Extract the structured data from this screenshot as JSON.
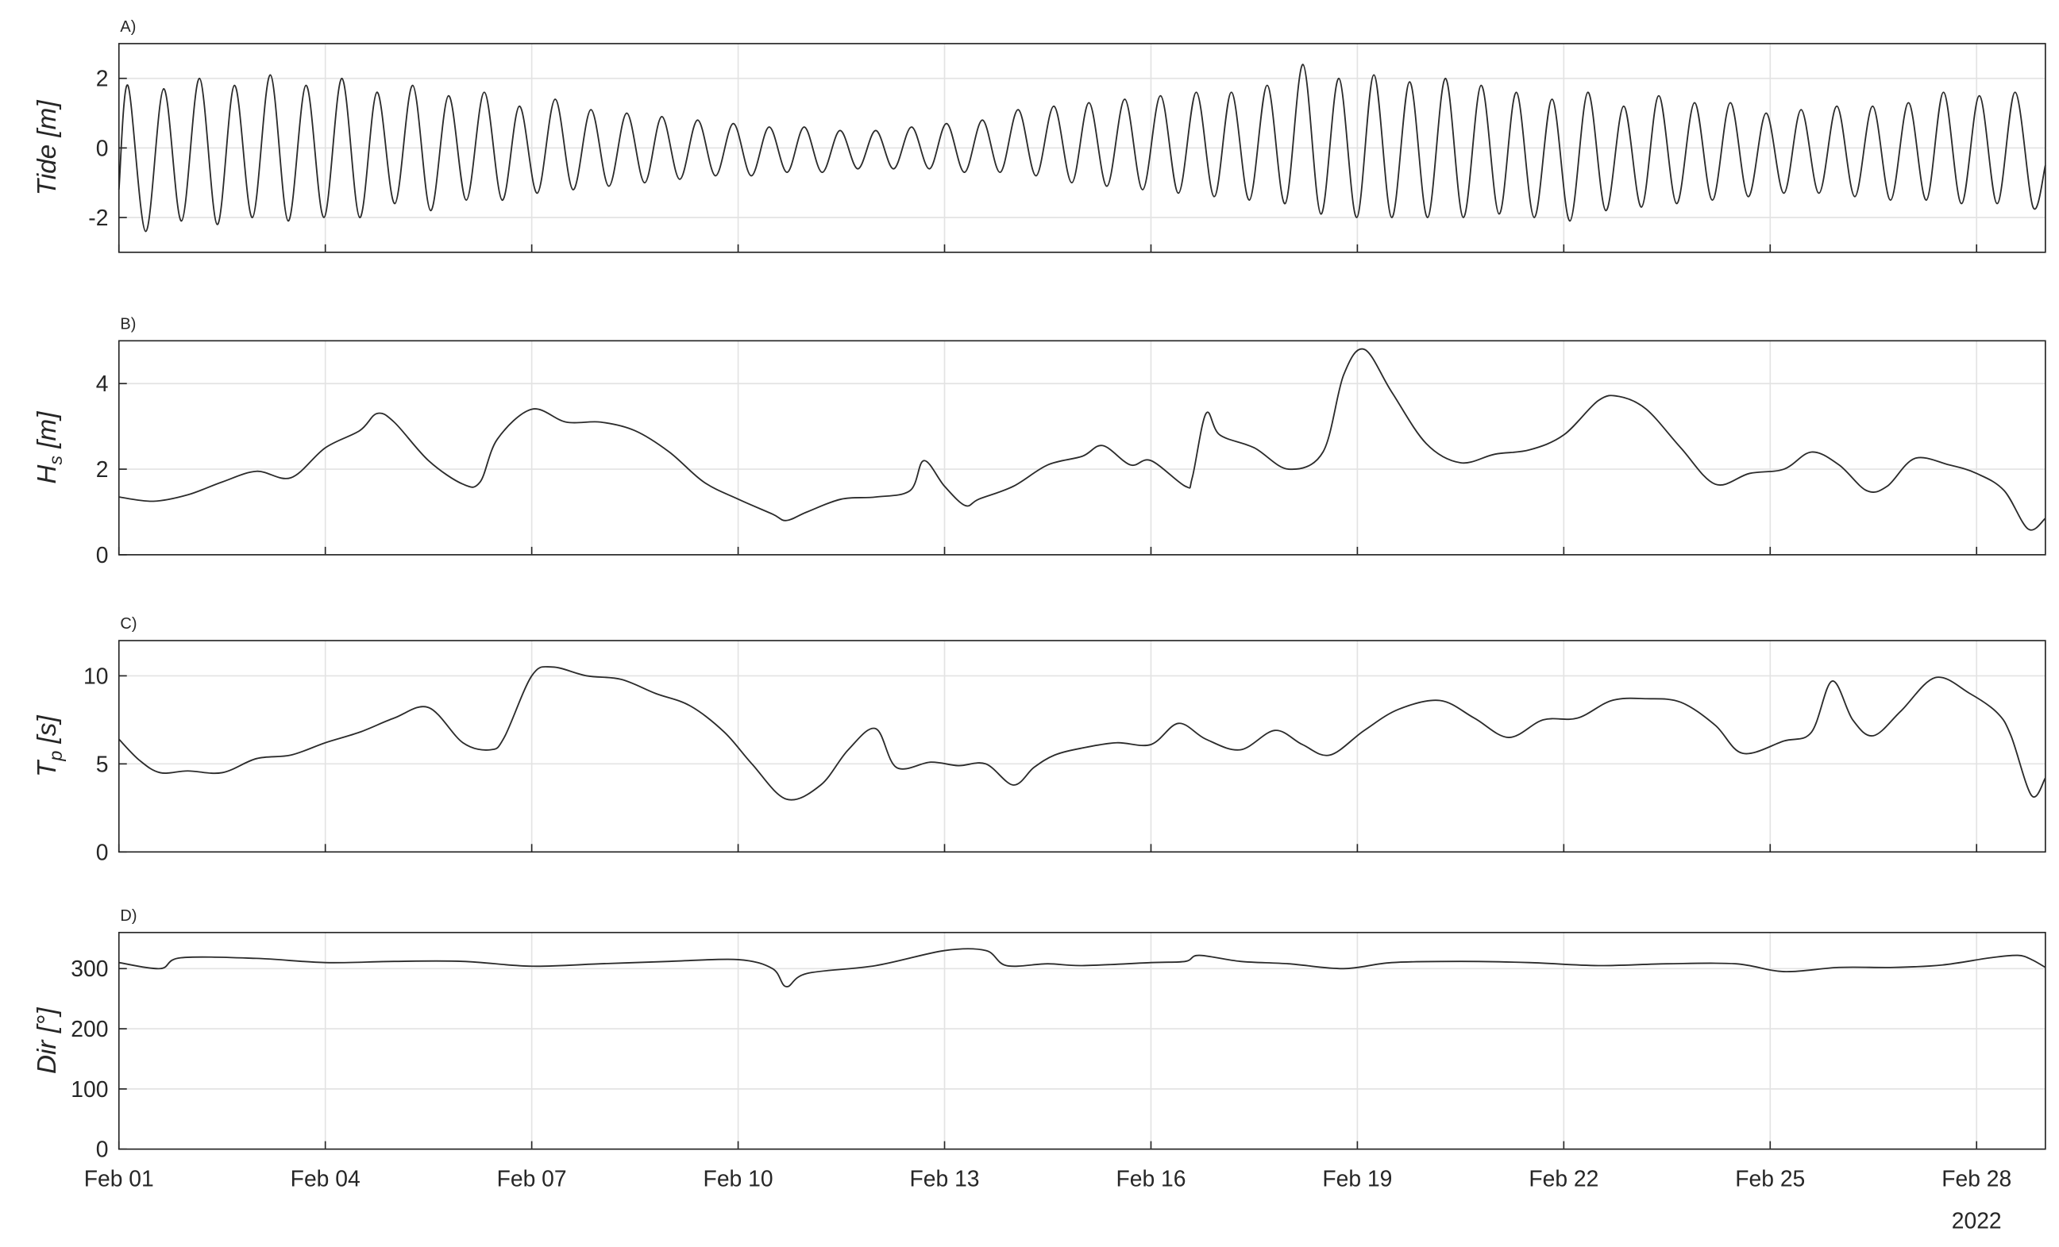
{
  "chart_data": [
    {
      "type": "line",
      "panel_label": "A)",
      "ylabel": [
        {
          "text": "Tide [m]"
        }
      ],
      "xlim": [
        0,
        28
      ],
      "xticks": [
        0,
        3,
        6,
        9,
        12,
        15,
        18,
        21,
        24,
        27
      ],
      "ylim": [
        -3,
        3
      ],
      "yticks": [
        -2,
        0,
        2
      ],
      "grid": true,
      "x": [
        0,
        0.13,
        0.39,
        0.65,
        0.91,
        1.17,
        1.43,
        1.68,
        1.94,
        2.2,
        2.46,
        2.72,
        2.98,
        3.24,
        3.5,
        3.75,
        4.01,
        4.27,
        4.53,
        4.79,
        5.05,
        5.31,
        5.57,
        5.82,
        6.08,
        6.34,
        6.6,
        6.86,
        7.12,
        7.38,
        7.64,
        7.89,
        8.15,
        8.41,
        8.67,
        8.93,
        9.19,
        9.45,
        9.71,
        9.96,
        10.22,
        10.48,
        10.74,
        11.0,
        11.26,
        11.52,
        11.78,
        12.03,
        12.29,
        12.55,
        12.81,
        13.07,
        13.33,
        13.59,
        13.85,
        14.1,
        14.36,
        14.62,
        14.88,
        15.14,
        15.4,
        15.66,
        15.92,
        16.17,
        16.43,
        16.69,
        16.95,
        17.21,
        17.47,
        17.73,
        17.99,
        18.24,
        18.5,
        18.76,
        19.02,
        19.28,
        19.54,
        19.8,
        20.06,
        20.31,
        20.57,
        20.83,
        21.09,
        21.35,
        21.61,
        21.87,
        22.13,
        22.38,
        22.64,
        22.9,
        23.16,
        23.42,
        23.68,
        23.94,
        24.2,
        24.45,
        24.71,
        24.97,
        25.23,
        25.49,
        25.75,
        26.01,
        26.27,
        26.52,
        26.78,
        27.04,
        27.3,
        27.56,
        27.82,
        28
      ],
      "series": [
        {
          "color": "#2b2b2b",
          "values": [
            -1.2,
            1.8,
            -2.4,
            1.7,
            -2.1,
            2.0,
            -2.2,
            1.8,
            -2.0,
            2.1,
            -2.1,
            1.8,
            -2.0,
            2.0,
            -2.0,
            1.6,
            -1.6,
            1.8,
            -1.8,
            1.5,
            -1.5,
            1.6,
            -1.5,
            1.2,
            -1.3,
            1.4,
            -1.2,
            1.1,
            -1.1,
            1.0,
            -1.0,
            0.9,
            -0.9,
            0.8,
            -0.8,
            0.7,
            -0.8,
            0.6,
            -0.7,
            0.6,
            -0.7,
            0.5,
            -0.6,
            0.5,
            -0.6,
            0.6,
            -0.6,
            0.7,
            -0.7,
            0.8,
            -0.7,
            1.1,
            -0.8,
            1.2,
            -1.0,
            1.3,
            -1.1,
            1.4,
            -1.2,
            1.5,
            -1.3,
            1.6,
            -1.4,
            1.6,
            -1.5,
            1.8,
            -1.6,
            2.4,
            -1.9,
            2.0,
            -2.0,
            2.1,
            -2.0,
            1.9,
            -2.0,
            2.0,
            -2.0,
            1.8,
            -1.9,
            1.6,
            -2.0,
            1.4,
            -2.1,
            1.6,
            -1.8,
            1.2,
            -1.7,
            1.5,
            -1.6,
            1.3,
            -1.5,
            1.3,
            -1.4,
            1.0,
            -1.3,
            1.1,
            -1.3,
            1.2,
            -1.4,
            1.2,
            -1.5,
            1.3,
            -1.5,
            1.6,
            -1.6,
            1.5,
            -1.6,
            1.6,
            -1.7,
            -0.5
          ]
        }
      ]
    },
    {
      "type": "line",
      "panel_label": "B)",
      "ylabel": [
        {
          "text": "H"
        },
        {
          "text": "s",
          "sub": true
        },
        {
          "text": " [m]"
        }
      ],
      "xlim": [
        0,
        28
      ],
      "xticks": [
        0,
        3,
        6,
        9,
        12,
        15,
        18,
        21,
        24,
        27
      ],
      "ylim": [
        0,
        5
      ],
      "yticks": [
        0,
        2,
        4
      ],
      "grid": true,
      "x": [
        0,
        0.5,
        1,
        1.5,
        2,
        2.5,
        3,
        3.5,
        3.75,
        4,
        4.5,
        5,
        5.25,
        5.5,
        6,
        6.5,
        7,
        7.5,
        8,
        8.5,
        9,
        9.5,
        9.7,
        10,
        10.5,
        11,
        11.5,
        11.7,
        12,
        12.3,
        12.5,
        13,
        13.5,
        14,
        14.3,
        14.7,
        15,
        15.5,
        15.6,
        15.8,
        16,
        16.5,
        17,
        17.5,
        17.8,
        18.1,
        18.5,
        19,
        19.5,
        20,
        20.5,
        21,
        21.5,
        21.8,
        22.2,
        22.7,
        23.2,
        23.7,
        24.2,
        24.6,
        25,
        25.4,
        25.7,
        26.1,
        26.6,
        27,
        27.4,
        27.75,
        28
      ],
      "series": [
        {
          "color": "#2b2b2b",
          "values": [
            1.35,
            1.25,
            1.4,
            1.7,
            1.95,
            1.8,
            2.5,
            2.9,
            3.3,
            3.1,
            2.2,
            1.65,
            1.7,
            2.7,
            3.4,
            3.1,
            3.1,
            2.9,
            2.4,
            1.7,
            1.3,
            0.95,
            0.8,
            1.0,
            1.3,
            1.35,
            1.5,
            2.2,
            1.6,
            1.15,
            1.3,
            1.6,
            2.1,
            2.3,
            2.55,
            2.1,
            2.2,
            1.6,
            1.8,
            3.3,
            2.8,
            2.5,
            2.0,
            2.4,
            4.2,
            4.8,
            3.8,
            2.6,
            2.15,
            2.35,
            2.45,
            2.8,
            3.6,
            3.7,
            3.4,
            2.5,
            1.65,
            1.9,
            2.0,
            2.4,
            2.1,
            1.5,
            1.6,
            2.25,
            2.1,
            1.9,
            1.5,
            0.6,
            0.85
          ]
        }
      ]
    },
    {
      "type": "line",
      "panel_label": "C)",
      "ylabel": [
        {
          "text": "T"
        },
        {
          "text": "p",
          "sub": true
        },
        {
          "text": " [s]"
        }
      ],
      "xlim": [
        0,
        28
      ],
      "xticks": [
        0,
        3,
        6,
        9,
        12,
        15,
        18,
        21,
        24,
        27
      ],
      "ylim": [
        0,
        12
      ],
      "yticks": [
        0,
        5,
        10
      ],
      "grid": true,
      "x": [
        0,
        0.3,
        0.6,
        1,
        1.5,
        2,
        2.5,
        3,
        3.5,
        4,
        4.5,
        5,
        5.4,
        5.6,
        6,
        6.3,
        6.8,
        7.3,
        7.8,
        8.3,
        8.8,
        9.2,
        9.7,
        10.2,
        10.6,
        11,
        11.3,
        11.8,
        12.2,
        12.6,
        13,
        13.3,
        13.6,
        14,
        14.5,
        15,
        15.4,
        15.8,
        16.3,
        16.8,
        17.2,
        17.6,
        18.1,
        18.6,
        19.2,
        19.7,
        20.2,
        20.7,
        21.2,
        21.7,
        22.2,
        22.7,
        23.2,
        23.6,
        24.2,
        24.6,
        24.9,
        25.2,
        25.5,
        25.9,
        26.4,
        26.9,
        27.3,
        27.5,
        27.8,
        28
      ],
      "series": [
        {
          "color": "#2b2b2b",
          "values": [
            6.4,
            5.2,
            4.5,
            4.6,
            4.5,
            5.3,
            5.5,
            6.2,
            6.8,
            7.6,
            8.2,
            6.2,
            5.8,
            6.5,
            10.0,
            10.5,
            10.0,
            9.8,
            9.0,
            8.3,
            6.8,
            5.0,
            3.0,
            3.8,
            5.8,
            7.0,
            4.8,
            5.1,
            4.9,
            5.0,
            3.8,
            4.8,
            5.5,
            5.9,
            6.2,
            6.1,
            7.3,
            6.4,
            5.8,
            6.9,
            6.1,
            5.5,
            6.9,
            8.1,
            8.6,
            7.6,
            6.5,
            7.5,
            7.6,
            8.6,
            8.7,
            8.5,
            7.2,
            5.6,
            6.3,
            6.8,
            9.7,
            7.5,
            6.6,
            8.0,
            9.9,
            9.0,
            7.9,
            6.6,
            3.2,
            4.2
          ]
        }
      ]
    },
    {
      "type": "line",
      "panel_label": "D)",
      "ylabel": [
        {
          "text": "Dir [°]"
        }
      ],
      "xlim": [
        0,
        28
      ],
      "xticks": [
        {
          "value": 0,
          "label": "Feb 01"
        },
        {
          "value": 3,
          "label": "Feb 04"
        },
        {
          "value": 6,
          "label": "Feb 07"
        },
        {
          "value": 9,
          "label": "Feb 10"
        },
        {
          "value": 12,
          "label": "Feb 13"
        },
        {
          "value": 15,
          "label": "Feb 16"
        },
        {
          "value": 18,
          "label": "Feb 19"
        },
        {
          "value": 21,
          "label": "Feb 22"
        },
        {
          "value": 24,
          "label": "Feb 25"
        },
        {
          "value": 27,
          "label": "Feb 28"
        }
      ],
      "annotation": "2022",
      "ylim": [
        0,
        360
      ],
      "yticks": [
        0,
        100,
        200,
        300
      ],
      "grid": true,
      "x": [
        0,
        0.6,
        0.9,
        2,
        3,
        4,
        5,
        6,
        7,
        8,
        9,
        9.5,
        9.7,
        10,
        11,
        12,
        12.6,
        12.9,
        13.5,
        14,
        15,
        15.5,
        15.7,
        16.3,
        17,
        17.8,
        18.5,
        19.5,
        20.5,
        21.5,
        22.5,
        23.5,
        24.2,
        25,
        25.8,
        26.5,
        27.2,
        27.6,
        27.8,
        28
      ],
      "series": [
        {
          "color": "#2b2b2b",
          "values": [
            310,
            300,
            318,
            317,
            310,
            312,
            312,
            304,
            308,
            312,
            315,
            300,
            270,
            292,
            305,
            330,
            330,
            305,
            308,
            305,
            310,
            312,
            322,
            312,
            308,
            300,
            310,
            312,
            310,
            305,
            308,
            308,
            295,
            302,
            302,
            306,
            318,
            322,
            315,
            302
          ]
        }
      ]
    }
  ]
}
